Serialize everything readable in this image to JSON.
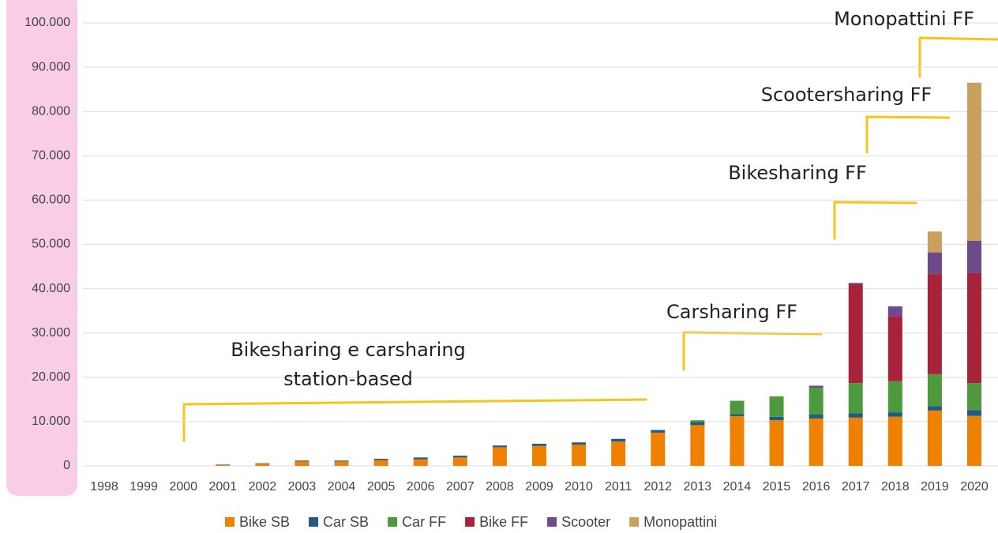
{
  "chart_data": {
    "type": "stacked_bar",
    "categories": [
      "1998",
      "1999",
      "2000",
      "2001",
      "2002",
      "2003",
      "2004",
      "2005",
      "2006",
      "2007",
      "2008",
      "2009",
      "2010",
      "2011",
      "2012",
      "2013",
      "2014",
      "2015",
      "2016",
      "2017",
      "2018",
      "2019",
      "2020"
    ],
    "series": [
      {
        "name": "Bike SB",
        "color": "#f08000",
        "values": [
          0,
          0,
          0,
          200,
          500,
          1000,
          1000,
          1300,
          1500,
          1900,
          4200,
          4500,
          4800,
          5500,
          7500,
          9200,
          11200,
          10300,
          10700,
          10900,
          11100,
          12500,
          11300
        ]
      },
      {
        "name": "Car SB",
        "color": "#1f5b85",
        "values": [
          0,
          0,
          0,
          100,
          100,
          200,
          200,
          300,
          400,
          400,
          400,
          500,
          500,
          600,
          600,
          700,
          500,
          800,
          900,
          1000,
          1000,
          1000,
          1300
        ]
      },
      {
        "name": "Car FF",
        "color": "#4c9a3c",
        "values": [
          0,
          0,
          0,
          0,
          0,
          0,
          0,
          0,
          0,
          0,
          0,
          0,
          0,
          0,
          0,
          400,
          3000,
          4600,
          6000,
          6800,
          7000,
          7200,
          6100
        ]
      },
      {
        "name": "Bike FF",
        "color": "#a8233a",
        "values": [
          0,
          0,
          0,
          0,
          0,
          0,
          0,
          0,
          0,
          0,
          0,
          0,
          0,
          0,
          0,
          0,
          0,
          0,
          0,
          22300,
          14700,
          22600,
          24800
        ]
      },
      {
        "name": "Scooter",
        "color": "#6c4a8c",
        "values": [
          0,
          0,
          0,
          0,
          0,
          0,
          0,
          0,
          0,
          0,
          0,
          0,
          0,
          0,
          0,
          0,
          0,
          0,
          500,
          300,
          2200,
          4900,
          7300
        ]
      },
      {
        "name": "Monopattini",
        "color": "#c9a05c",
        "values": [
          0,
          0,
          0,
          0,
          0,
          0,
          0,
          0,
          0,
          0,
          0,
          0,
          0,
          0,
          0,
          0,
          0,
          0,
          0,
          0,
          0,
          4700,
          35700
        ]
      }
    ],
    "ylim": [
      0,
      100000
    ],
    "yticks": [
      0,
      {
        "value": 10000,
        "label": "10.000"
      },
      {
        "value": 20000,
        "label": "20.000"
      },
      {
        "value": 30000,
        "label": "30.000"
      },
      {
        "value": 40000,
        "label": "40.000"
      },
      {
        "value": 50000,
        "label": "50.000"
      },
      {
        "value": 60000,
        "label": "60.000"
      },
      {
        "value": 70000,
        "label": "70.000"
      },
      {
        "value": 80000,
        "label": "80.000"
      },
      {
        "value": 90000,
        "label": "90.000"
      },
      {
        "value": 100000,
        "label": "100.000"
      }
    ],
    "grid": true,
    "legend": "bottom",
    "annotations": [
      "Monopattini FF",
      "Scootersharing FF",
      "Bikesharing FF",
      "Carsharing FF",
      "Bikesharing e carsharing",
      "station-based"
    ]
  }
}
